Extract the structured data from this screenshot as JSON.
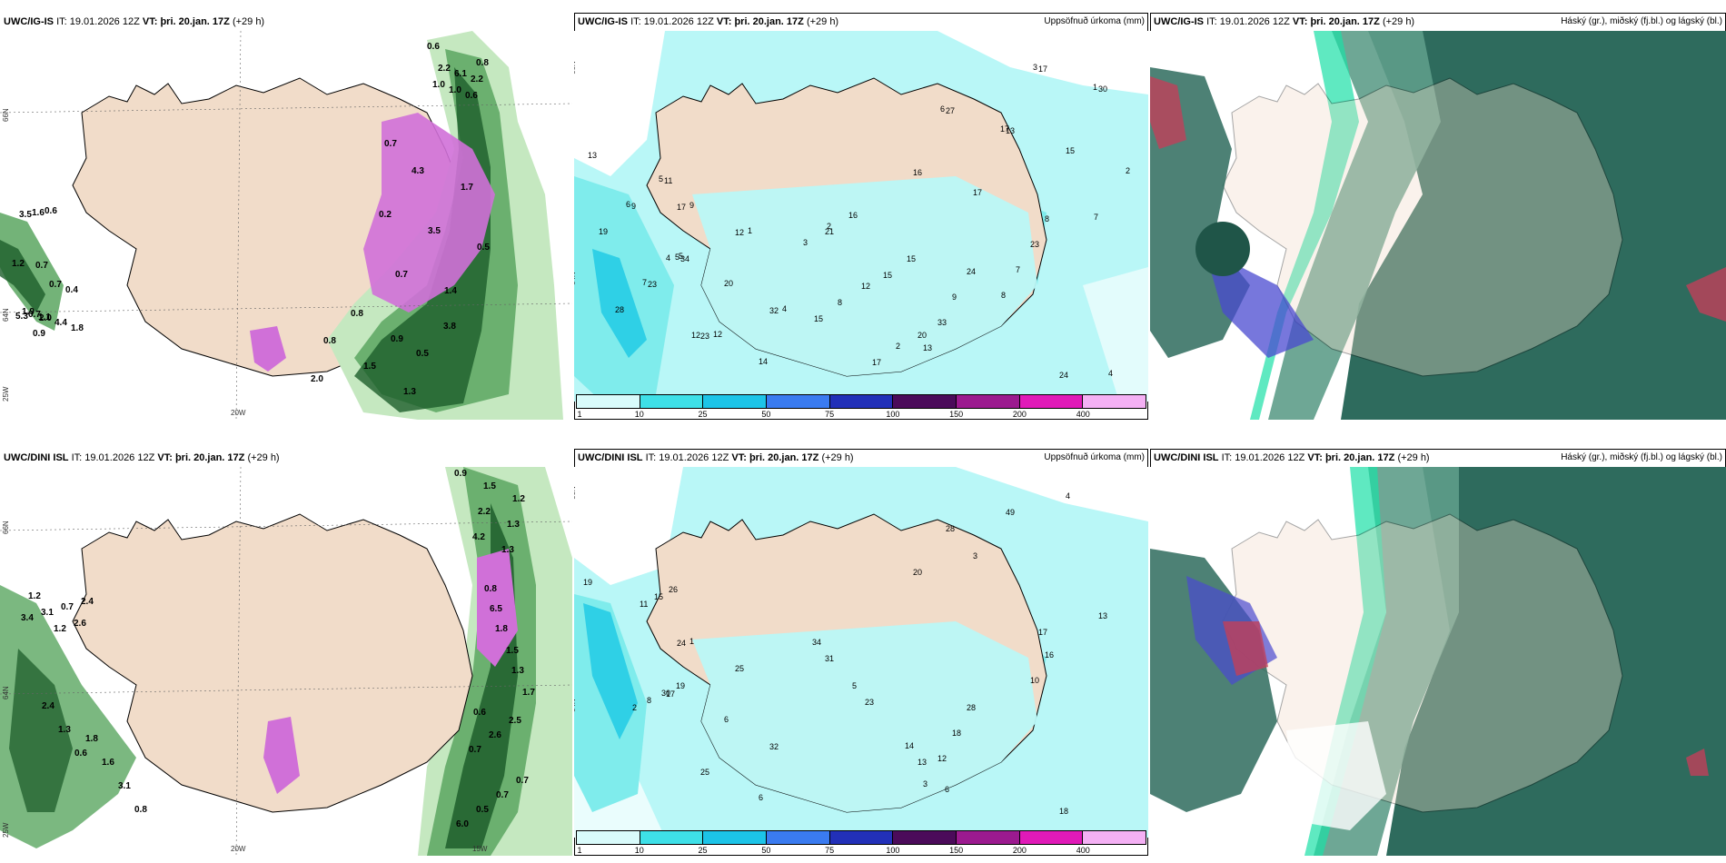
{
  "colors": {
    "land": "#f1dcc9",
    "sea": "#ffffff",
    "precip_light": "#b9f7f7",
    "precip_mid": "#7fecec",
    "precip_high": "#2fd0e6",
    "wind_green_light": "#c5e8c0",
    "wind_green": "#5aa660",
    "wind_green_dark": "#1d5e2b",
    "magenta": "#d070d8",
    "cloud_dark": "#2e6b5d",
    "cloud_mid": "#5e9d8a"
  },
  "panels": [
    {
      "model": "UWC/IG-IS",
      "it_label": "IT:",
      "it_value": "19.01.2026 12Z",
      "vt_label": "VT:",
      "vt_value": "þri. 20.jan. 17Z",
      "lead": "(+29 h)",
      "title_right": ""
    },
    {
      "model": "UWC/IG-IS",
      "it_label": "IT:",
      "it_value": "19.01.2026 12Z",
      "vt_label": "VT:",
      "vt_value": "þri. 20.jan. 17Z",
      "lead": "(+29 h)",
      "title_right": "Uppsöfnuð úrkoma (mm)"
    },
    {
      "model": "UWC/IG-IS",
      "it_label": "IT:",
      "it_value": "19.01.2026 12Z",
      "vt_label": "VT:",
      "vt_value": "þri. 20.jan. 17Z",
      "lead": "(+29 h)",
      "title_right": "Háský (gr.), miðský (fj.bl.) og lágský (bl.)"
    },
    {
      "model": "UWC/DINI ISL",
      "it_label": "IT:",
      "it_value": "19.01.2026 12Z",
      "vt_label": "VT:",
      "vt_value": "þri. 20.jan. 17Z",
      "lead": "(+29 h)",
      "title_right": ""
    },
    {
      "model": "UWC/DINI ISL",
      "it_label": "IT:",
      "it_value": "19.01.2026 12Z",
      "vt_label": "VT:",
      "vt_value": "þri. 20.jan. 17Z",
      "lead": "(+29 h)",
      "title_right": "Uppsöfnuð úrkoma (mm)"
    },
    {
      "model": "UWC/DINI ISL",
      "it_label": "IT:",
      "it_value": "19.01.2026 12Z",
      "vt_label": "VT:",
      "vt_value": "þri. 20.jan. 17Z",
      "lead": "(+29 h)",
      "title_right": "Háský (gr.), miðský (fj.bl.) og lágský (bl.)"
    }
  ],
  "grid_labels": {
    "lat_66": "66N",
    "lat_64": "64N",
    "lon_20w": "20W",
    "lon_25w": "25W",
    "lon_15w": "15W"
  },
  "colorbar": {
    "ticks": [
      "1",
      "10",
      "25",
      "50",
      "75",
      "100",
      "150",
      "200",
      "400"
    ],
    "colors": [
      "#d9fbfb",
      "#3ee0e8",
      "#1cc4e8",
      "#3a7bf0",
      "#2230b8",
      "#4b0b5a",
      "#9b1a8f",
      "#e01ab8",
      "#f4b0f4"
    ]
  },
  "wind_labels_top": [
    "0.6",
    "0.7",
    "0.8",
    "0.6",
    "0.4",
    "0.6",
    "0.5",
    "0.5",
    "0.7",
    "0.7",
    "1.0",
    "1.7",
    "1.5",
    "1.2",
    "0.9",
    "1.0",
    "1.4",
    "2.0",
    "1.6",
    "1.8",
    "2.2",
    "3.5",
    "1.3",
    "5.3",
    "4.4",
    "6.1",
    "4.3",
    "0.8",
    "0.7",
    "1.1",
    "2.2",
    "0.7",
    "3.8",
    "3.5",
    "1.9",
    "0.8",
    "0.2",
    "0.9",
    "2.0"
  ],
  "wind_labels_bottom": [
    "0.9",
    "0.8",
    "0.7",
    "1.2",
    "0.6",
    "1.5",
    "1.7",
    "2.6",
    "2.6",
    "1.3",
    "1.2",
    "1.5",
    "2.5",
    "3.4",
    "2.4",
    "2.2",
    "6.5",
    "6.0",
    "3.1",
    "0.8",
    "1.3",
    "0.6",
    "0.5",
    "0.7",
    "3.1",
    "4.2",
    "1.3",
    "0.7",
    "2.4",
    "1.6",
    "1.3",
    "1.8",
    "0.7",
    "1.2",
    "1.8"
  ],
  "precip_top": [
    "13",
    "17",
    "21",
    "27",
    "24",
    "34",
    "32",
    "20",
    "17",
    "24",
    "11",
    "12",
    "15",
    "16",
    "9",
    "23",
    "23",
    "16",
    "13",
    "8",
    "9",
    "4",
    "15",
    "30",
    "33",
    "28",
    "14",
    "15",
    "17",
    "23",
    "19",
    "20",
    "17",
    "15",
    "13",
    "12",
    "9",
    "8",
    "6",
    "7",
    "5",
    "4",
    "3",
    "3",
    "4",
    "5",
    "1",
    "2",
    "2",
    "8",
    "7",
    "12",
    "12",
    "17",
    "7",
    "6",
    "5",
    "2",
    "1"
  ],
  "precip_bottom": [
    "19",
    "24",
    "31",
    "28",
    "28",
    "19",
    "32",
    "13",
    "17",
    "18",
    "26",
    "25",
    "23",
    "20",
    "18",
    "30",
    "25",
    "34",
    "49",
    "16",
    "15",
    "17",
    "14",
    "13",
    "12",
    "8",
    "6",
    "5",
    "3",
    "10",
    "11",
    "6",
    "6",
    "4",
    "3",
    "2",
    "1"
  ]
}
